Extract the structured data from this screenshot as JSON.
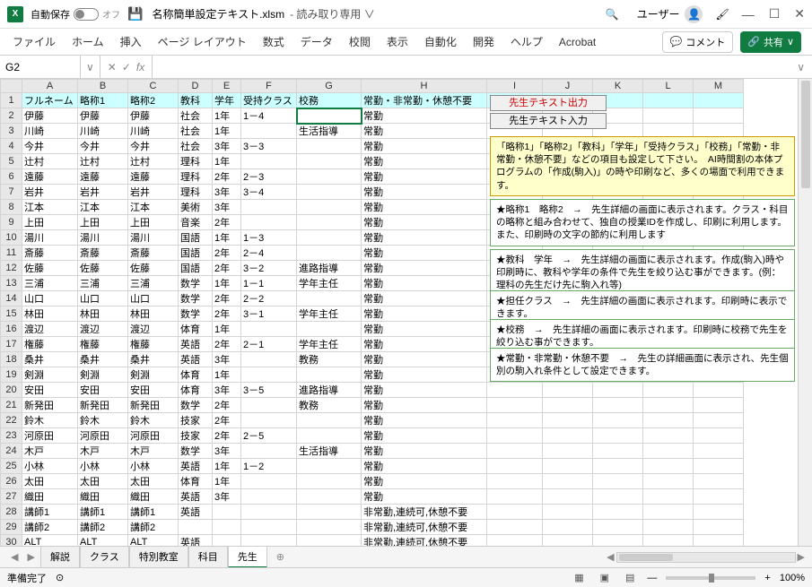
{
  "titlebar": {
    "autosave_label": "自動保存",
    "autosave_state": "オフ",
    "filename": "名称簡単設定テキスト.xlsm",
    "readonly": "読み取り専用",
    "user": "ユーザー"
  },
  "ribbon": {
    "tabs": [
      "ファイル",
      "ホーム",
      "挿入",
      "ページ レイアウト",
      "数式",
      "データ",
      "校閲",
      "表示",
      "自動化",
      "開発",
      "ヘルプ",
      "Acrobat"
    ],
    "comment": "コメント",
    "share": "共有"
  },
  "formula": {
    "cell_ref": "G2",
    "fx": "fx",
    "value": ""
  },
  "columns": [
    "A",
    "B",
    "C",
    "D",
    "E",
    "F",
    "G",
    "H",
    "I",
    "J",
    "K",
    "L",
    "M"
  ],
  "header_row": [
    "フルネーム",
    "略称1",
    "略称2",
    "教科",
    "学年",
    "受持クラス",
    "校務",
    "常勤・非常勤・休憩不要",
    "",
    "",
    "",
    "",
    ""
  ],
  "rows": [
    [
      "伊藤",
      "伊藤",
      "伊藤",
      "社会",
      "1年",
      "1－4",
      "",
      "常勤"
    ],
    [
      "川崎",
      "川崎",
      "川崎",
      "社会",
      "1年",
      "",
      "生活指導",
      "常勤"
    ],
    [
      "今井",
      "今井",
      "今井",
      "社会",
      "3年",
      "3－3",
      "",
      "常勤"
    ],
    [
      "辻村",
      "辻村",
      "辻村",
      "理科",
      "1年",
      "",
      "",
      "常勤"
    ],
    [
      "遠藤",
      "遠藤",
      "遠藤",
      "理科",
      "2年",
      "2－3",
      "",
      "常勤"
    ],
    [
      "岩井",
      "岩井",
      "岩井",
      "理科",
      "3年",
      "3－4",
      "",
      "常勤"
    ],
    [
      "江本",
      "江本",
      "江本",
      "美術",
      "3年",
      "",
      "",
      "常勤"
    ],
    [
      "上田",
      "上田",
      "上田",
      "音楽",
      "2年",
      "",
      "",
      "常勤"
    ],
    [
      "湯川",
      "湯川",
      "湯川",
      "国語",
      "1年",
      "1－3",
      "",
      "常勤"
    ],
    [
      "斎藤",
      "斎藤",
      "斎藤",
      "国語",
      "2年",
      "2－4",
      "",
      "常勤"
    ],
    [
      "佐藤",
      "佐藤",
      "佐藤",
      "国語",
      "2年",
      "3－2",
      "進路指導",
      "常勤"
    ],
    [
      "三浦",
      "三浦",
      "三浦",
      "数学",
      "1年",
      "1－1",
      "学年主任",
      "常勤"
    ],
    [
      "山口",
      "山口",
      "山口",
      "数学",
      "2年",
      "2－2",
      "",
      "常勤"
    ],
    [
      "林田",
      "林田",
      "林田",
      "数学",
      "2年",
      "3－1",
      "学年主任",
      "常勤"
    ],
    [
      "渡辺",
      "渡辺",
      "渡辺",
      "体育",
      "1年",
      "",
      "",
      "常勤"
    ],
    [
      "権藤",
      "権藤",
      "権藤",
      "英語",
      "2年",
      "2－1",
      "学年主任",
      "常勤"
    ],
    [
      "桑井",
      "桑井",
      "桑井",
      "英語",
      "3年",
      "",
      "教務",
      "常勤"
    ],
    [
      "剣淵",
      "剣淵",
      "剣淵",
      "体育",
      "1年",
      "",
      "",
      "常勤"
    ],
    [
      "安田",
      "安田",
      "安田",
      "体育",
      "3年",
      "3－5",
      "進路指導",
      "常勤"
    ],
    [
      "新発田",
      "新発田",
      "新発田",
      "数学",
      "2年",
      "",
      "教務",
      "常勤"
    ],
    [
      "鈴木",
      "鈴木",
      "鈴木",
      "技家",
      "2年",
      "",
      "",
      "常勤"
    ],
    [
      "河原田",
      "河原田",
      "河原田",
      "技家",
      "2年",
      "2－5",
      "",
      "常勤"
    ],
    [
      "木戸",
      "木戸",
      "木戸",
      "数学",
      "3年",
      "",
      "生活指導",
      "常勤"
    ],
    [
      "小林",
      "小林",
      "小林",
      "英語",
      "1年",
      "1－2",
      "",
      "常勤"
    ],
    [
      "太田",
      "太田",
      "太田",
      "体育",
      "1年",
      "",
      "",
      "常勤"
    ],
    [
      "織田",
      "織田",
      "織田",
      "英語",
      "3年",
      "",
      "",
      "常勤"
    ],
    [
      "講師1",
      "講師1",
      "講師1",
      "英語",
      "",
      "",
      "",
      "非常勤,連続可,休憩不要"
    ],
    [
      "講師2",
      "講師2",
      "講師2",
      "",
      "",
      "",
      "",
      "非常勤,連続可,休憩不要"
    ],
    [
      "ALT",
      "ALT",
      "ALT",
      "英語",
      "",
      "",
      "",
      "非常勤,連続可,休憩不要"
    ],
    [
      "",
      "",
      "",
      "",
      "",
      "",
      "",
      ""
    ]
  ],
  "overlay": {
    "btn_export": "先生テキスト出力",
    "btn_import": "先生テキスト入力",
    "box_yellow": "「略称1」「略称2」「教科」「学年」「受持クラス」「校務」「常勤・非常勤・休憩不要」などの項目も設定して下さい。　AI時間割の本体プログラムの「作成(駒入)」の時や印刷など、多くの場面で利用できます。",
    "box_g1": "★略称1　略称2　→　先生詳細の画面に表示されます。クラス・科目の略称と組み合わせて、独自の授業IDを作成し、印刷に利用します。また、印刷時の文字の節約に利用します",
    "box_g2": "★教科　学年　→　先生詳細の画面に表示されます。作成(駒入)時や印刷時に、教科や学年の条件で先生を絞り込む事ができます。(例：理科の先生だけ先に駒入れ等)",
    "box_g3": "★担任クラス　→　先生詳細の画面に表示されます。印刷時に表示できます。",
    "box_g4": "★校務　→　先生詳細の画面に表示されます。印刷時に校務で先生を絞り込む事ができます。",
    "box_g5": "★常勤・非常勤・休憩不要　→　先生の詳細画面に表示され、先生個別の駒入れ条件として設定できます。"
  },
  "sheets": {
    "tabs": [
      "解説",
      "クラス",
      "特別教室",
      "科目",
      "先生"
    ],
    "active": 4
  },
  "statusbar": {
    "ready": "準備完了",
    "zoom": "100%"
  },
  "colors": {
    "header_bg": "#ccffff",
    "accent": "#107c41",
    "yellow_bg": "#ffffcc"
  }
}
